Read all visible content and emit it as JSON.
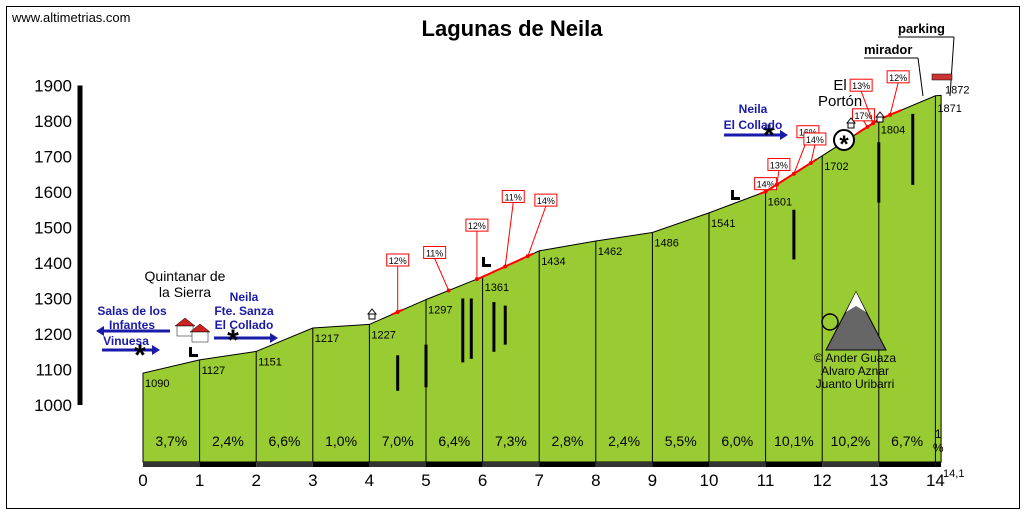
{
  "site": "www.altimetrias.com",
  "title": "Lagunas de Neila",
  "colors": {
    "profile": "#99cc33",
    "accent_line": "#ff0000",
    "arrow": "#1a1aa8",
    "axis": "#000000"
  },
  "chart_data": {
    "type": "area",
    "title": "Lagunas de Neila",
    "xlabel": "",
    "ylabel": "",
    "xlim": [
      0,
      14.1
    ],
    "ylim": [
      1000,
      1900
    ],
    "y_ticks": [
      "1000",
      "1100",
      "1200",
      "1300",
      "1400",
      "1500",
      "1600",
      "1700",
      "1800",
      "1900"
    ],
    "x_ticks": [
      "0",
      "1",
      "2",
      "3",
      "4",
      "5",
      "6",
      "7",
      "8",
      "9",
      "10",
      "11",
      "12",
      "13",
      "14"
    ],
    "x_end_label": "14,1",
    "altitudes": [
      {
        "x": 0,
        "y": 1090,
        "label": "1090"
      },
      {
        "x": 1,
        "y": 1127,
        "label": "1127"
      },
      {
        "x": 2,
        "y": 1151,
        "label": "1151"
      },
      {
        "x": 3,
        "y": 1217,
        "label": "1217"
      },
      {
        "x": 4,
        "y": 1227,
        "label": "1227"
      },
      {
        "x": 5,
        "y": 1297,
        "label": "1297"
      },
      {
        "x": 6,
        "y": 1361,
        "label": "1361"
      },
      {
        "x": 7,
        "y": 1434,
        "label": "1434"
      },
      {
        "x": 8,
        "y": 1462,
        "label": "1462"
      },
      {
        "x": 9,
        "y": 1486,
        "label": "1486"
      },
      {
        "x": 10,
        "y": 1541,
        "label": "1541"
      },
      {
        "x": 11,
        "y": 1601,
        "label": "1601"
      },
      {
        "x": 12,
        "y": 1702,
        "label": "1702"
      },
      {
        "x": 13,
        "y": 1804,
        "label": "1804"
      },
      {
        "x": 14,
        "y": 1871,
        "label": "1871"
      },
      {
        "x": 14.1,
        "y": 1872,
        "label": "1872"
      }
    ],
    "gradients": [
      "3,7%",
      "2,4%",
      "6,6%",
      "1,0%",
      "7,0%",
      "6,4%",
      "7,3%",
      "2,8%",
      "2,4%",
      "5,5%",
      "6,0%",
      "10,1%",
      "10,2%",
      "6,7%"
    ],
    "last_gradient": "1 %",
    "ramps": [
      {
        "x": 4.5,
        "label": "12%"
      },
      {
        "x": 5.4,
        "label": "11%"
      },
      {
        "x": 5.9,
        "label": "12%"
      },
      {
        "x": 6.4,
        "label": "11%"
      },
      {
        "x": 6.8,
        "label": "14%"
      },
      {
        "x": 11,
        "label": "14%"
      },
      {
        "x": 11.2,
        "label": "13%"
      },
      {
        "x": 11.5,
        "label": "16%"
      },
      {
        "x": 11.8,
        "label": "14%"
      },
      {
        "x": 12.8,
        "label": "17%"
      },
      {
        "x": 12.9,
        "label": "13%"
      },
      {
        "x": 13.2,
        "label": "12%"
      }
    ]
  },
  "places": {
    "quintanar": "Quintanar de la Sierra",
    "left_arrow_1": "Salas de los Infantes",
    "left_arrow_2": "Vinuesa",
    "right_arrow_1": "Neila",
    "right_arrow_2": "Fte. Sanza",
    "right_arrow_3": "El Collado",
    "neila_arrow_1": "Neila",
    "neila_arrow_2": "El Collado",
    "el_porton": "El Portón",
    "mirador": "mirador",
    "parking": "parking"
  },
  "credits": [
    "© Ander Guaza",
    "Alvaro Aznar",
    "Juanto Uribarri"
  ]
}
